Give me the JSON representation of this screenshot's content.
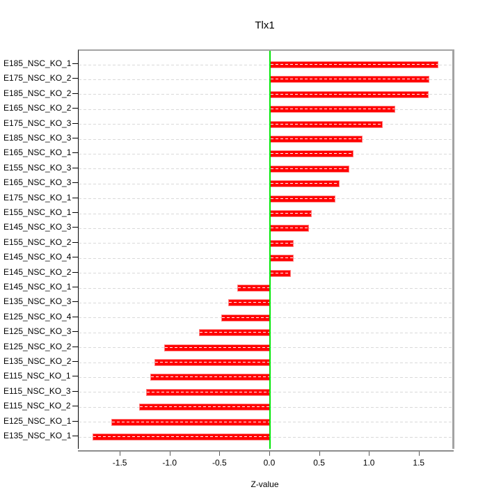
{
  "chart_data": {
    "type": "bar",
    "orientation": "horizontal",
    "title": "Tlx1",
    "xlabel": "Z-value",
    "ylabel": "",
    "xlim": [
      -1.92,
      1.83
    ],
    "x_ticks": [
      -1.5,
      -1.0,
      -0.5,
      0.0,
      0.5,
      1.0,
      1.5
    ],
    "x_tick_labels": [
      "-1.5",
      "-1.0",
      "-0.5",
      "0.0",
      "0.5",
      "1.0",
      "1.5"
    ],
    "grid": "dashed-horizontal-per-category",
    "legend_position": "none",
    "categories": [
      "E185_NSC_KO_1",
      "E175_NSC_KO_2",
      "E185_NSC_KO_2",
      "E165_NSC_KO_2",
      "E175_NSC_KO_3",
      "E185_NSC_KO_3",
      "E165_NSC_KO_1",
      "E155_NSC_KO_3",
      "E165_NSC_KO_3",
      "E175_NSC_KO_1",
      "E155_NSC_KO_1",
      "E145_NSC_KO_3",
      "E155_NSC_KO_2",
      "E145_NSC_KO_4",
      "E145_NSC_KO_2",
      "E145_NSC_KO_1",
      "E135_NSC_KO_3",
      "E125_NSC_KO_4",
      "E125_NSC_KO_3",
      "E125_NSC_KO_2",
      "E135_NSC_KO_2",
      "E115_NSC_KO_1",
      "E115_NSC_KO_3",
      "E115_NSC_KO_2",
      "E125_NSC_KO_1",
      "E135_NSC_KO_1"
    ],
    "values": [
      1.69,
      1.6,
      1.59,
      1.26,
      1.13,
      0.93,
      0.84,
      0.8,
      0.7,
      0.66,
      0.42,
      0.39,
      0.24,
      0.24,
      0.21,
      -0.33,
      -0.42,
      -0.49,
      -0.71,
      -1.06,
      -1.16,
      -1.2,
      -1.24,
      -1.31,
      -1.59,
      -1.78
    ],
    "colors": {
      "bar_fill": "#ff0000",
      "bar_border": "#ff8080",
      "zero_line": "#00e606",
      "grid_line": "#d9d9d9",
      "grid_over_bar": "#ffffff",
      "box_top_right": "#a3a3a3",
      "box_bottom": "#8c8c8c",
      "axis_left": "#000000"
    }
  }
}
